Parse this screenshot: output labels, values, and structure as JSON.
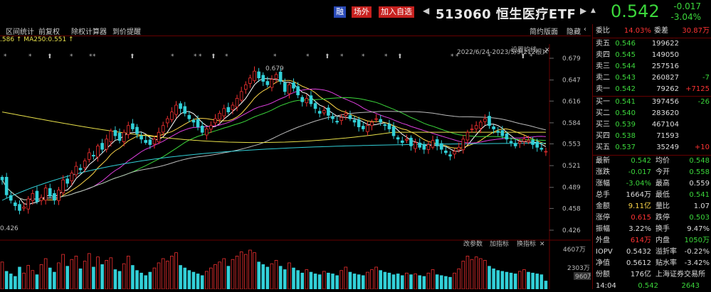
{
  "header": {
    "badge_rong": "融",
    "badge_chang": "场外",
    "badge_add": "加入自选",
    "prev_arrow": "◀",
    "title": "513060 恒生医疗ETF",
    "next_arrow": "▶",
    "more_arrow": "▲",
    "price": "0.542",
    "change": "-0.017",
    "change_pct": "-3.04%"
  },
  "toolbar": {
    "items": [
      "区间统计",
      "前复权",
      "除权计算器",
      "到价提醒"
    ],
    "right_items": [
      "简约版面",
      "隐藏"
    ],
    "more": "‹"
  },
  "ma_legend": ".586 ↑  MA250:0.551 ↑",
  "chart": {
    "settings_label": "设置均线",
    "date_range": "2022/6/24-2023/5/9(212根)",
    "high_mark": "0.679",
    "low_mark": "0.426",
    "price_ticks": [
      "0.679",
      "0.647",
      "0.616",
      "0.584",
      "0.553",
      "0.521",
      "0.489",
      "0.458",
      "0.426"
    ],
    "vol_ticks": [
      "4607万",
      "2303万",
      "960万"
    ],
    "vol_tabs": [
      "改参数",
      "加指标",
      "换指标"
    ],
    "current_price_line": "0.542"
  },
  "chart_data": {
    "type": "candlestick",
    "title": "",
    "ylim": [
      0.426,
      0.679
    ],
    "colors": {
      "up": "#f03030",
      "down": "#32d0d8",
      "vol_up": "#f03030",
      "vol_down": "#32d0d8"
    },
    "closes": [
      0.5,
      0.478,
      0.47,
      0.462,
      0.455,
      0.46,
      0.472,
      0.48,
      0.468,
      0.474,
      0.488,
      0.476,
      0.47,
      0.485,
      0.5,
      0.495,
      0.51,
      0.52,
      0.515,
      0.528,
      0.54,
      0.535,
      0.55,
      0.545,
      0.56,
      0.572,
      0.565,
      0.558,
      0.57,
      0.58,
      0.575,
      0.568,
      0.56,
      0.555,
      0.552,
      0.56,
      0.57,
      0.58,
      0.59,
      0.6,
      0.61,
      0.605,
      0.598,
      0.59,
      0.585,
      0.578,
      0.57,
      0.575,
      0.58,
      0.59,
      0.598,
      0.605,
      0.6,
      0.61,
      0.62,
      0.63,
      0.64,
      0.65,
      0.66,
      0.65,
      0.645,
      0.64,
      0.648,
      0.655,
      0.645,
      0.63,
      0.64,
      0.635,
      0.625,
      0.615,
      0.62,
      0.612,
      0.605,
      0.598,
      0.602,
      0.595,
      0.59,
      0.585,
      0.592,
      0.598,
      0.59,
      0.585,
      0.578,
      0.575,
      0.58,
      0.585,
      0.59,
      0.585,
      0.58,
      0.575,
      0.565,
      0.56,
      0.555,
      0.56,
      0.55,
      0.555,
      0.548,
      0.545,
      0.552,
      0.558,
      0.55,
      0.545,
      0.54,
      0.535,
      0.542,
      0.548,
      0.56,
      0.57,
      0.575,
      0.58,
      0.585,
      0.59,
      0.58,
      0.575,
      0.57,
      0.565,
      0.56,
      0.555,
      0.55,
      0.556,
      0.56,
      0.558,
      0.552,
      0.548,
      0.545,
      0.542
    ],
    "volumes": [
      3200,
      2100,
      1800,
      1500,
      2600,
      1900,
      2800,
      2200,
      1700,
      2900,
      3600,
      2500,
      2000,
      3100,
      4100,
      2700,
      3500,
      3900,
      2400,
      3300,
      4200,
      2600,
      3800,
      2900,
      3400,
      3700,
      2300,
      2100,
      3000,
      3900,
      2800,
      2200,
      1900,
      1600,
      2000,
      2500,
      3100,
      3600,
      3300,
      3900,
      4300,
      2800,
      2500,
      2200,
      2000,
      1800,
      1600,
      2100,
      2500,
      2900,
      3200,
      3600,
      2700,
      3500,
      3900,
      4400,
      4100,
      4607,
      4300,
      3200,
      2900,
      2600,
      3000,
      3400,
      2700,
      2300,
      3100,
      2500,
      2200,
      1900,
      2300,
      2000,
      1800,
      1700,
      2100,
      1900,
      1800,
      1600,
      2200,
      2600,
      2000,
      1800,
      1700,
      1600,
      2000,
      2300,
      2600,
      2200,
      2000,
      1900,
      1700,
      1800,
      1600,
      1900,
      1700,
      1800,
      1600,
      1500,
      1900,
      2300,
      1700,
      1600,
      1500,
      1400,
      1900,
      2400,
      3300,
      3900,
      3500,
      3800,
      3600,
      3400,
      2700,
      2400,
      2200,
      2100,
      2000,
      1900,
      1800,
      2100,
      2300,
      2000,
      1900,
      1800,
      1700,
      960
    ]
  },
  "sidebar": {
    "webi": {
      "label": "委比",
      "value": "14.03%",
      "label2": "委差",
      "value2": "30.87万"
    },
    "asks": [
      {
        "label": "卖五",
        "price": "0.546",
        "vol": "199622",
        "chg": ""
      },
      {
        "label": "卖四",
        "price": "0.545",
        "vol": "149050",
        "chg": ""
      },
      {
        "label": "卖三",
        "price": "0.544",
        "vol": "257516",
        "chg": ""
      },
      {
        "label": "卖二",
        "price": "0.543",
        "vol": "260827",
        "chg": "-7"
      },
      {
        "label": "卖一",
        "price": "0.542",
        "vol": "79262",
        "chg": "+7125"
      }
    ],
    "bids": [
      {
        "label": "买一",
        "price": "0.541",
        "vol": "397456",
        "chg": "-26"
      },
      {
        "label": "买二",
        "price": "0.540",
        "vol": "283620",
        "chg": ""
      },
      {
        "label": "买三",
        "price": "0.539",
        "vol": "467104",
        "chg": ""
      },
      {
        "label": "买四",
        "price": "0.538",
        "vol": "71593",
        "chg": ""
      },
      {
        "label": "买五",
        "price": "0.537",
        "vol": "35249",
        "chg": "+10"
      }
    ],
    "stats": [
      {
        "l1": "最新",
        "v1": "0.542",
        "c1": "grn",
        "l2": "均价",
        "v2": "0.548",
        "c2": "grn"
      },
      {
        "l1": "涨跌",
        "v1": "-0.017",
        "c1": "grn",
        "l2": "今开",
        "v2": "0.558",
        "c2": "grn"
      },
      {
        "l1": "涨幅",
        "v1": "-3.04%",
        "c1": "grn",
        "l2": "最高",
        "v2": "0.559",
        "c2": "wht"
      },
      {
        "l1": "总手",
        "v1": "1664万",
        "c1": "wht",
        "l2": "最低",
        "v2": "0.541",
        "c2": "grn"
      },
      {
        "l1": "金额",
        "v1": "9.11亿",
        "c1": "yel",
        "l2": "量比",
        "v2": "1.07",
        "c2": "wht"
      },
      {
        "l1": "涨停",
        "v1": "0.615",
        "c1": "red",
        "l2": "跌停",
        "v2": "0.503",
        "c2": "grn"
      },
      {
        "l1": "振幅",
        "v1": "3.22%",
        "c1": "wht",
        "l2": "换手",
        "v2": "9.47%",
        "c2": "wht"
      },
      {
        "l1": "外盘",
        "v1": "614万",
        "c1": "red",
        "l2": "内盘",
        "v2": "1050万",
        "c2": "grn"
      },
      {
        "l1": "IOPV",
        "v1": "0.5432",
        "c1": "wht",
        "l2": "溢折率",
        "v2": "-0.22%",
        "c2": "wht"
      },
      {
        "l1": "净值",
        "v1": "0.5612",
        "c1": "wht",
        "l2": "贴水率",
        "v2": "-3.42%",
        "c2": "wht"
      },
      {
        "l1": "份额",
        "v1": "176亿",
        "c1": "wht",
        "l2": "上海证券交易所",
        "v2": "",
        "c2": "wht"
      }
    ],
    "last_row": {
      "time": "14:04",
      "price": "0.542",
      "vol": "2643"
    }
  }
}
